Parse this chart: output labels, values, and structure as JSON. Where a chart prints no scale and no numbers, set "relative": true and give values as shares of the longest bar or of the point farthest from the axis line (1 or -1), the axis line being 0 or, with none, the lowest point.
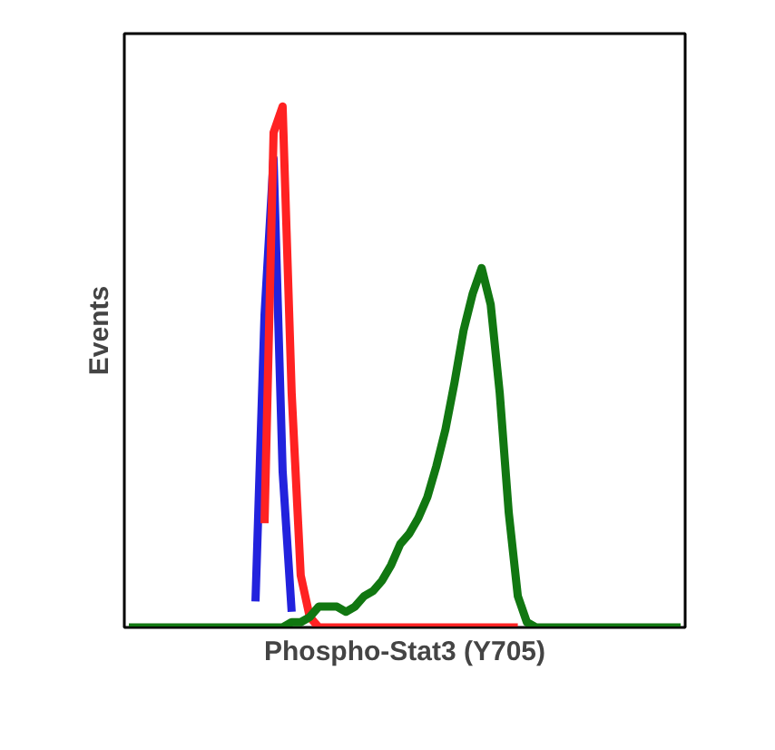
{
  "chart_data": {
    "type": "line",
    "relative": true,
    "xlabel": "Phospho-Stat3 (Y705)",
    "ylabel": "Events",
    "tick_labels": false,
    "categories": [
      null,
      null,
      null,
      null,
      null,
      null,
      null,
      null,
      null,
      null,
      null,
      null,
      null,
      null,
      null,
      null,
      null,
      null,
      null,
      null,
      null,
      null,
      null,
      null,
      null,
      null,
      null,
      null,
      null,
      null,
      null,
      null,
      null,
      null,
      null,
      null,
      null,
      null,
      null,
      null,
      null,
      null,
      null,
      null,
      null,
      null,
      null,
      null,
      null,
      null,
      null,
      null,
      null,
      null,
      null,
      null,
      null,
      null,
      null,
      null,
      null,
      null
    ],
    "series": [
      {
        "color": "#2222dd",
        "values": [
          null,
          null,
          null,
          null,
          null,
          null,
          null,
          null,
          null,
          null,
          null,
          null,
          null,
          null,
          0.05,
          0.6,
          0.9,
          0.3,
          0.03,
          null,
          null,
          null,
          null,
          null,
          null,
          null,
          null,
          null,
          null,
          null,
          null,
          null,
          null,
          null,
          null,
          null,
          null,
          null,
          null,
          null,
          null,
          null,
          null,
          null,
          null,
          null,
          null,
          null,
          null,
          null,
          null,
          null,
          null,
          null,
          null,
          null,
          null,
          null,
          null,
          null,
          null,
          null
        ]
      },
      {
        "color": "#ff2222",
        "values": [
          null,
          null,
          null,
          null,
          null,
          null,
          null,
          null,
          null,
          null,
          null,
          null,
          null,
          null,
          null,
          0.2,
          0.95,
          1.0,
          0.45,
          0.1,
          0.02,
          0,
          0,
          0,
          0,
          0,
          0,
          0,
          0,
          0,
          0,
          0,
          0,
          0,
          0,
          0,
          0,
          0,
          0,
          0,
          0,
          0,
          0,
          0,
          null,
          null,
          null,
          null,
          null,
          null,
          null,
          null,
          null,
          null,
          null,
          null,
          null,
          null,
          null,
          null,
          null,
          null
        ]
      },
      {
        "color": "#117711",
        "values": [
          0,
          0,
          0,
          0,
          0,
          0,
          0,
          0,
          0,
          0,
          0,
          0,
          0,
          0,
          0,
          0,
          0,
          0,
          0.01,
          0.01,
          0.02,
          0.04,
          0.04,
          0.04,
          0.03,
          0.04,
          0.06,
          0.07,
          0.09,
          0.12,
          0.16,
          0.18,
          0.21,
          0.25,
          0.31,
          0.38,
          0.47,
          0.57,
          0.64,
          0.69,
          0.62,
          0.45,
          0.22,
          0.06,
          0.01,
          0,
          0,
          0,
          0,
          0,
          0,
          0,
          0,
          0,
          0,
          0,
          0,
          0,
          0,
          0,
          0,
          0
        ]
      }
    ]
  }
}
